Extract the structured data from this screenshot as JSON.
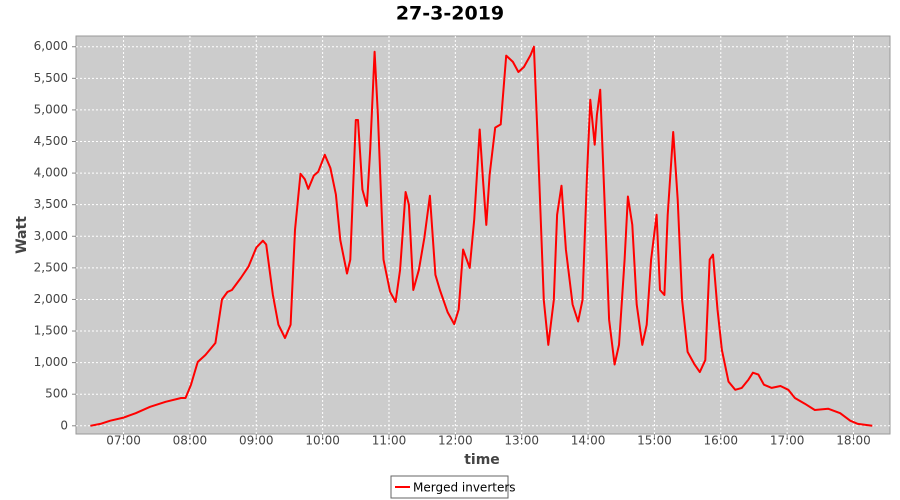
{
  "chart_data": {
    "type": "line",
    "title": "27-3-2019",
    "x_label": "time",
    "y_label": "Watt",
    "x": [
      "06:30",
      "06:39",
      "06:48",
      "07:00",
      "07:11",
      "07:24",
      "07:38",
      "07:52",
      "07:56",
      "08:01",
      "08:07",
      "08:14",
      "08:23",
      "08:29",
      "08:34",
      "08:38",
      "08:46",
      "08:53",
      "09:00",
      "09:06",
      "09:09",
      "09:15",
      "09:20",
      "09:26",
      "09:31",
      "09:35",
      "09:40",
      "09:44",
      "09:47",
      "09:52",
      "09:56",
      "10:02",
      "10:07",
      "10:12",
      "10:16",
      "10:22",
      "10:25",
      "10:30",
      "10:32",
      "10:36",
      "10:40",
      "10:43",
      "10:47",
      "10:50",
      "10:55",
      "11:01",
      "11:06",
      "11:10",
      "11:15",
      "11:18",
      "11:22",
      "11:27",
      "11:32",
      "11:37",
      "11:42",
      "11:46",
      "11:53",
      "11:59",
      "12:03",
      "12:07",
      "12:13",
      "12:17",
      "12:22",
      "12:25",
      "12:28",
      "12:31",
      "12:36",
      "12:41",
      "12:46",
      "12:52",
      "12:57",
      "13:02",
      "13:08",
      "13:11",
      "13:15",
      "13:20",
      "13:24",
      "13:29",
      "13:32",
      "13:36",
      "13:40",
      "13:46",
      "13:51",
      "13:55",
      "13:59",
      "14:02",
      "14:06",
      "14:08",
      "14:11",
      "14:15",
      "14:19",
      "14:24",
      "14:28",
      "14:33",
      "14:36",
      "14:40",
      "14:44",
      "14:49",
      "14:53",
      "14:57",
      "15:02",
      "15:05",
      "15:09",
      "15:12",
      "15:17",
      "15:21",
      "15:25",
      "15:30",
      "15:36",
      "15:41",
      "15:46",
      "15:50",
      "15:53",
      "15:57",
      "16:01",
      "16:07",
      "16:13",
      "16:19",
      "16:25",
      "16:29",
      "16:34",
      "16:39",
      "16:46",
      "16:54",
      "17:01",
      "17:07",
      "17:16",
      "17:25",
      "17:37",
      "17:48",
      "17:57",
      "18:04",
      "18:17"
    ],
    "series": [
      {
        "name": "Merged inverters",
        "color": "#ff0000",
        "values": [
          0,
          30,
          80,
          130,
          200,
          300,
          380,
          440,
          440,
          650,
          1010,
          1120,
          1310,
          2000,
          2120,
          2150,
          2340,
          2520,
          2820,
          2930,
          2870,
          2070,
          1600,
          1390,
          1600,
          3100,
          3990,
          3900,
          3750,
          3960,
          4020,
          4290,
          4080,
          3660,
          2940,
          2410,
          2630,
          4840,
          4840,
          3740,
          3480,
          4370,
          5920,
          4920,
          2630,
          2120,
          1960,
          2470,
          3700,
          3500,
          2150,
          2470,
          2980,
          3640,
          2390,
          2150,
          1800,
          1610,
          1840,
          2790,
          2500,
          3260,
          4690,
          3890,
          3180,
          3970,
          4720,
          4770,
          5860,
          5760,
          5600,
          5680,
          5870,
          6000,
          4290,
          1990,
          1280,
          1990,
          3340,
          3800,
          2790,
          1920,
          1650,
          1990,
          3970,
          5160,
          4450,
          4920,
          5320,
          3500,
          1680,
          970,
          1280,
          2630,
          3630,
          3180,
          1920,
          1280,
          1600,
          2630,
          3340,
          2150,
          2070,
          3340,
          4650,
          3580,
          1990,
          1170,
          980,
          850,
          1040,
          2630,
          2710,
          1840,
          1200,
          700,
          570,
          600,
          730,
          840,
          810,
          650,
          600,
          630,
          570,
          440,
          350,
          250,
          270,
          200,
          80,
          30,
          0
        ]
      }
    ],
    "xlim": [
      "06:17",
      "18:33"
    ],
    "xticks": [
      "07:00",
      "08:00",
      "09:00",
      "10:00",
      "11:00",
      "12:00",
      "13:00",
      "14:00",
      "15:00",
      "16:00",
      "17:00",
      "18:00"
    ],
    "ylim": [
      -130,
      6170
    ],
    "yticks": [
      0,
      500,
      {
        "value": 1000,
        "label": "1,000"
      },
      {
        "value": 1500,
        "label": "1,500"
      },
      {
        "value": 2000,
        "label": "2,000"
      },
      {
        "value": 2500,
        "label": "2,500"
      },
      {
        "value": 3000,
        "label": "3,000"
      },
      {
        "value": 3500,
        "label": "3,500"
      },
      {
        "value": 4000,
        "label": "4,000"
      },
      {
        "value": 4500,
        "label": "4,500"
      },
      {
        "value": 5000,
        "label": "5,000"
      },
      {
        "value": 5500,
        "label": "5,500"
      },
      {
        "value": 6000,
        "label": "6,000"
      }
    ],
    "grid": true
  }
}
